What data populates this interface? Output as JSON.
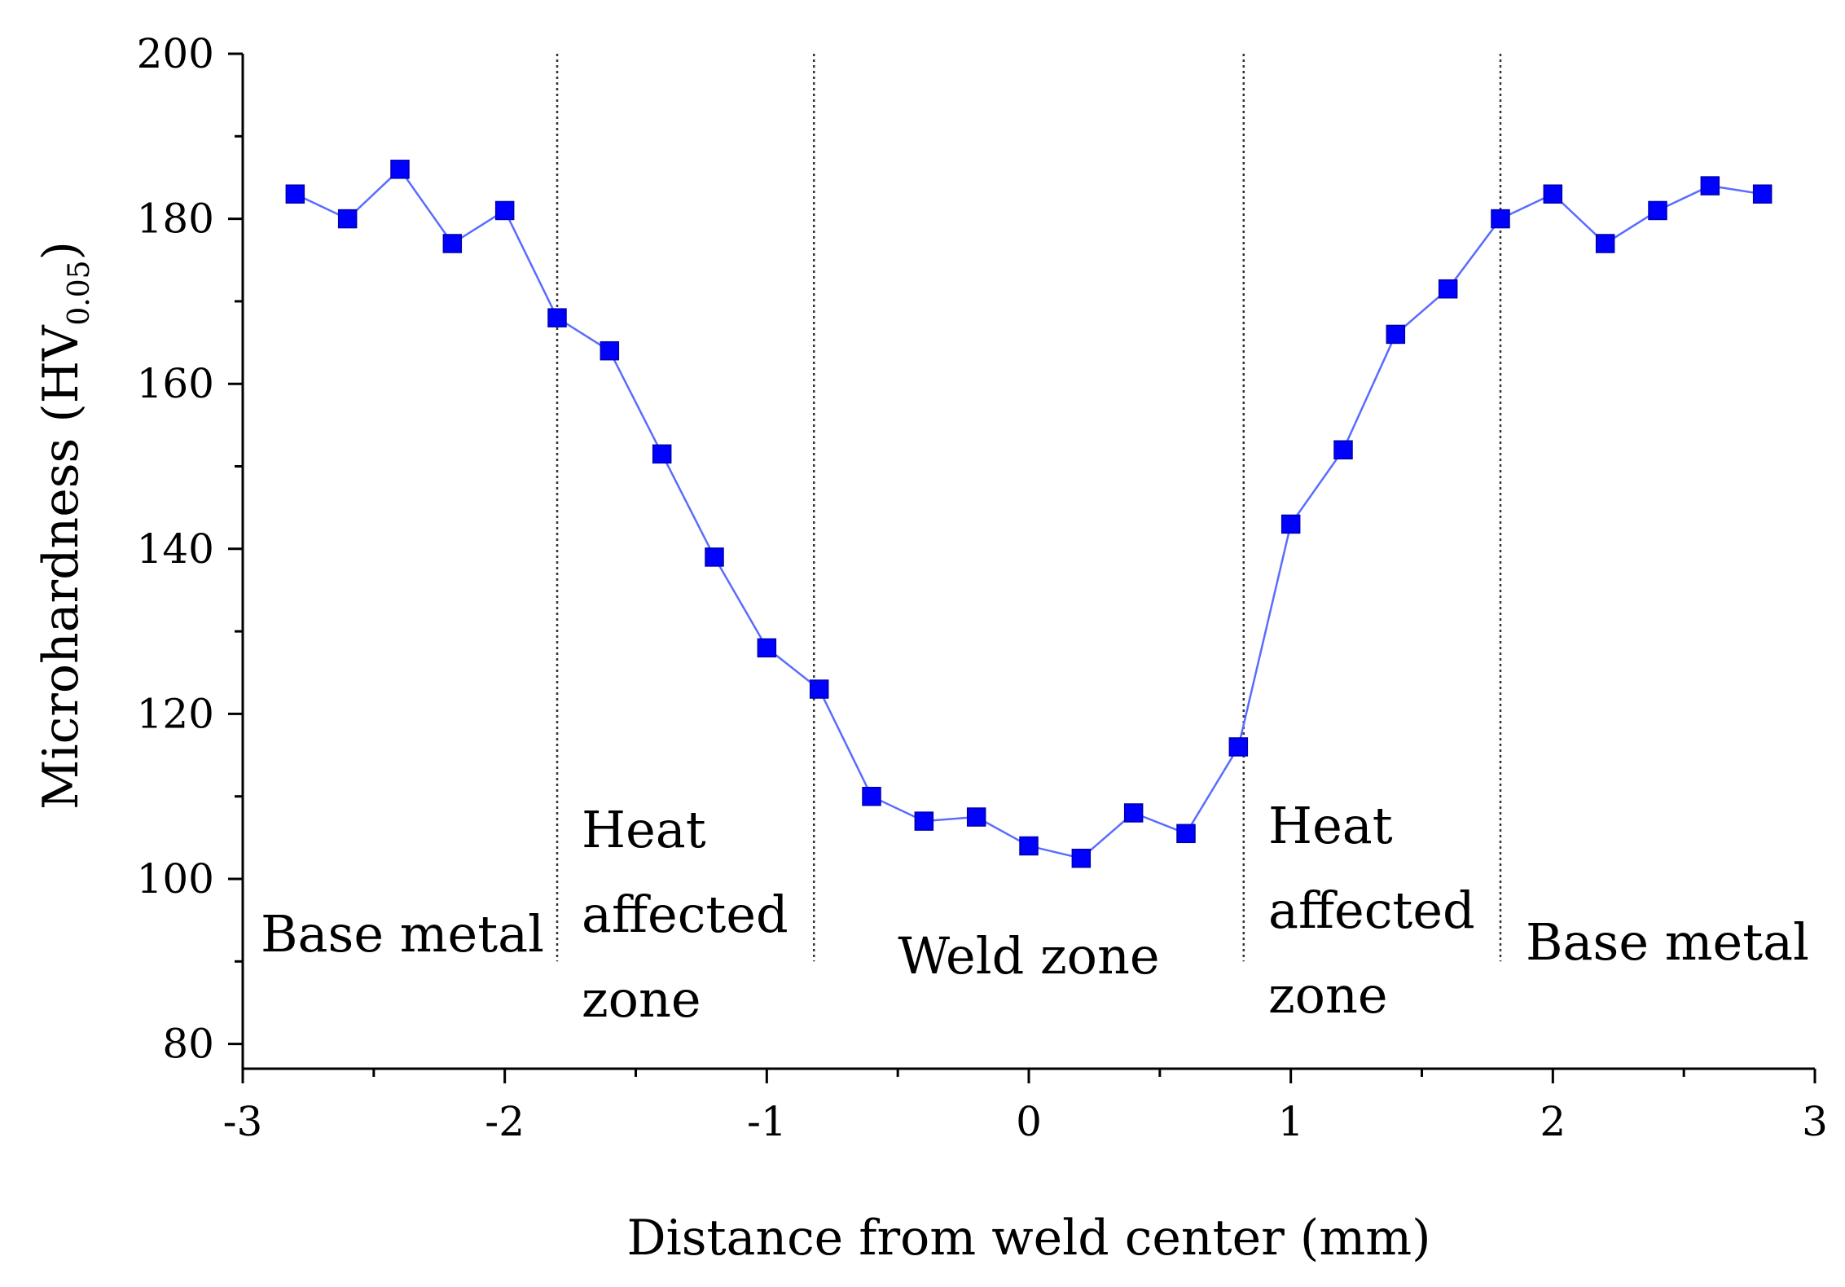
{
  "chart_data": {
    "type": "line",
    "title": "",
    "xlabel": "Distance from weld center (mm)",
    "ylabel": {
      "main": "Microhardness (HV",
      "sub": "0.05",
      "close": ")"
    },
    "xlim": [
      -3,
      3
    ],
    "ylim": [
      77,
      200
    ],
    "xticks": [
      -3,
      -2,
      -1,
      0,
      1,
      2,
      3
    ],
    "xtick_labels": [
      "-3",
      "-2",
      "-1",
      "0",
      "1",
      "2",
      "3"
    ],
    "yticks": [
      80,
      100,
      120,
      140,
      160,
      180,
      200
    ],
    "ytick_labels": [
      "80",
      "100",
      "120",
      "140",
      "160",
      "180",
      "200"
    ],
    "grid": false,
    "marker_color": "#0000ff",
    "line_color": "#5a6cff",
    "series": [
      {
        "name": "Microhardness",
        "x": [
          -2.8,
          -2.6,
          -2.4,
          -2.2,
          -2.0,
          -1.8,
          -1.6,
          -1.4,
          -1.2,
          -1.0,
          -0.8,
          -0.6,
          -0.4,
          -0.2,
          0.0,
          0.2,
          0.4,
          0.6,
          0.8,
          1.0,
          1.2,
          1.4,
          1.6,
          1.8,
          2.0,
          2.2,
          2.4,
          2.6,
          2.8
        ],
        "y": [
          183,
          180,
          186,
          177,
          181,
          168,
          164,
          151.5,
          139,
          128,
          123,
          110,
          107,
          107.5,
          104,
          102.5,
          108,
          105.5,
          116,
          143,
          152,
          166,
          171.5,
          180,
          183,
          177,
          181,
          184,
          183
        ]
      }
    ],
    "boundaries": [
      -1.8,
      -0.82,
      0.82,
      1.8
    ],
    "regions": [
      {
        "lines": [
          "Base metal"
        ]
      },
      {
        "lines": [
          "Heat",
          "affected",
          "zone"
        ]
      },
      {
        "lines": [
          "Weld zone"
        ]
      },
      {
        "lines": [
          "Heat",
          "affected",
          "zone"
        ]
      },
      {
        "lines": [
          "Base metal"
        ]
      }
    ]
  }
}
